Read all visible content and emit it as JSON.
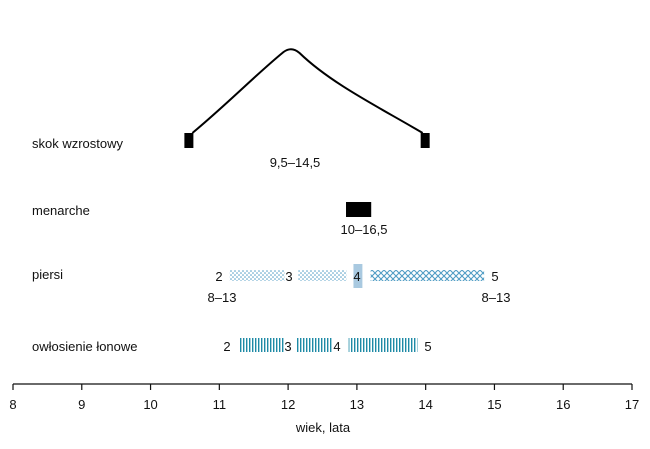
{
  "chart_data": {
    "type": "range-diagram",
    "xlabel": "wiek, lata",
    "xlim": [
      8,
      17
    ],
    "x_ticks": [
      "8",
      "9",
      "10",
      "11",
      "12",
      "13",
      "14",
      "15",
      "16",
      "17"
    ],
    "rows": {
      "growth_spurt": {
        "label": "skok wzrostowy",
        "start": 10.55,
        "peak": 12.05,
        "end": 14.0,
        "range_label": "9,5–14,5"
      },
      "menarche": {
        "label": "menarche",
        "start": 12.9,
        "end": 13.15,
        "range_label": "10–16,5"
      },
      "breasts": {
        "label": "piersi",
        "stages": [
          "2",
          "3",
          "4",
          "5"
        ],
        "segments": [
          [
            11.15,
            11.95
          ],
          [
            12.15,
            12.85
          ],
          [
            12.95,
            13.08
          ],
          [
            13.2,
            14.85
          ]
        ],
        "range_start_label": "8–13",
        "range_end_label": "8–13",
        "fill_color": "#4f9cc4",
        "stage4_color": "#a9c9e0"
      },
      "pubic_hair": {
        "label": "owłosienie łonowe",
        "stages": [
          "2",
          "3",
          "4",
          "5"
        ],
        "segments": [
          [
            11.3,
            11.95
          ],
          [
            12.12,
            12.65
          ],
          [
            12.88,
            13.88
          ]
        ],
        "fill_color": "#1e8aa6"
      }
    }
  }
}
